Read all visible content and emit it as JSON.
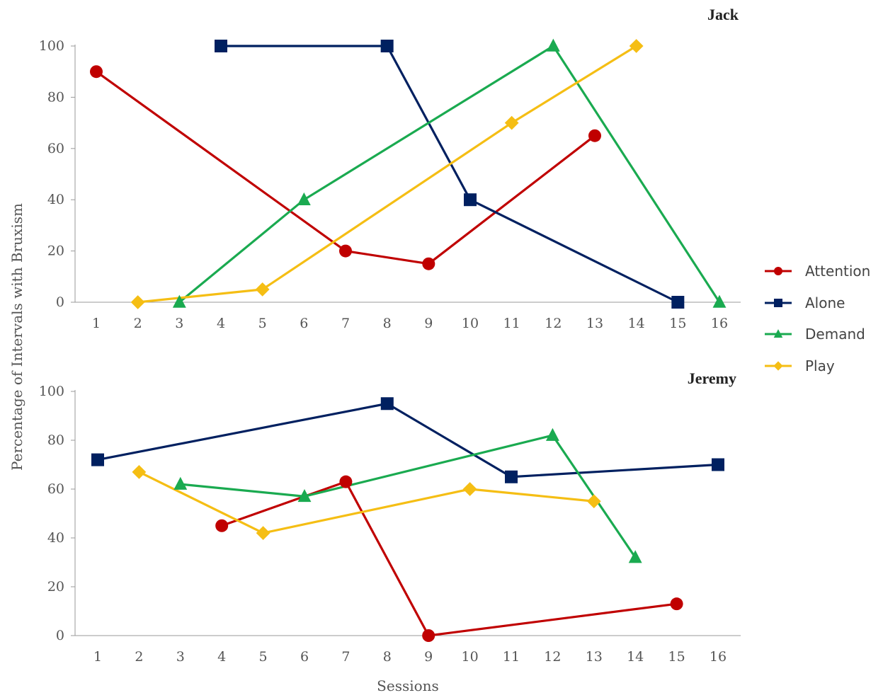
{
  "chart_data": {
    "type": "line",
    "ylabel": "Percentage of Intervals with Bruxism",
    "xlabel": "Sessions",
    "legend": {
      "position": "right",
      "entries": [
        "Attention",
        "Alone",
        "Demand",
        "Play"
      ]
    },
    "series_styles": [
      {
        "name": "Attention",
        "color": "#C00000",
        "marker": "circle"
      },
      {
        "name": "Alone",
        "color": "#002060",
        "marker": "square"
      },
      {
        "name": "Demand",
        "color": "#1AAA50",
        "marker": "triangle"
      },
      {
        "name": "Play",
        "color": "#F5BE14",
        "marker": "diamond"
      }
    ],
    "panels": [
      {
        "title": "Jack",
        "x_ticks": [
          "1",
          "2",
          "3",
          "4",
          "5",
          "6",
          "7",
          "8",
          "9",
          "10",
          "11",
          "12",
          "13",
          "14",
          "15",
          "16"
        ],
        "y_ticks": [
          "0",
          "20",
          "40",
          "60",
          "80",
          "100"
        ],
        "xlim": [
          1,
          16
        ],
        "ylim": [
          0,
          100
        ],
        "series": [
          {
            "name": "Attention",
            "points": [
              [
                1,
                90
              ],
              [
                7,
                20
              ],
              [
                9,
                15
              ],
              [
                13,
                65
              ]
            ]
          },
          {
            "name": "Alone",
            "points": [
              [
                4,
                100
              ],
              [
                8,
                100
              ],
              [
                10,
                40
              ],
              [
                15,
                0
              ]
            ]
          },
          {
            "name": "Demand",
            "points": [
              [
                3,
                0
              ],
              [
                6,
                40
              ],
              [
                12,
                100
              ],
              [
                16,
                0
              ]
            ]
          },
          {
            "name": "Play",
            "points": [
              [
                2,
                0
              ],
              [
                5,
                5
              ],
              [
                11,
                70
              ],
              [
                14,
                100
              ]
            ]
          }
        ]
      },
      {
        "title": "Jeremy",
        "x_ticks": [
          "1",
          "2",
          "3",
          "4",
          "5",
          "6",
          "7",
          "8",
          "9",
          "10",
          "11",
          "12",
          "13",
          "14",
          "15",
          "16"
        ],
        "y_ticks": [
          "0",
          "20",
          "40",
          "60",
          "80",
          "100"
        ],
        "xlim": [
          1,
          16
        ],
        "ylim": [
          0,
          100
        ],
        "series": [
          {
            "name": "Attention",
            "points": [
              [
                4,
                45
              ],
              [
                7,
                63
              ],
              [
                9,
                0
              ],
              [
                15,
                13
              ]
            ]
          },
          {
            "name": "Alone",
            "points": [
              [
                1,
                72
              ],
              [
                8,
                95
              ],
              [
                11,
                65
              ],
              [
                16,
                70
              ]
            ]
          },
          {
            "name": "Demand",
            "points": [
              [
                3,
                62
              ],
              [
                6,
                57
              ],
              [
                12,
                82
              ],
              [
                14,
                32
              ]
            ]
          },
          {
            "name": "Play",
            "points": [
              [
                2,
                67
              ],
              [
                5,
                42
              ],
              [
                10,
                60
              ],
              [
                13,
                55
              ]
            ]
          }
        ]
      }
    ]
  }
}
